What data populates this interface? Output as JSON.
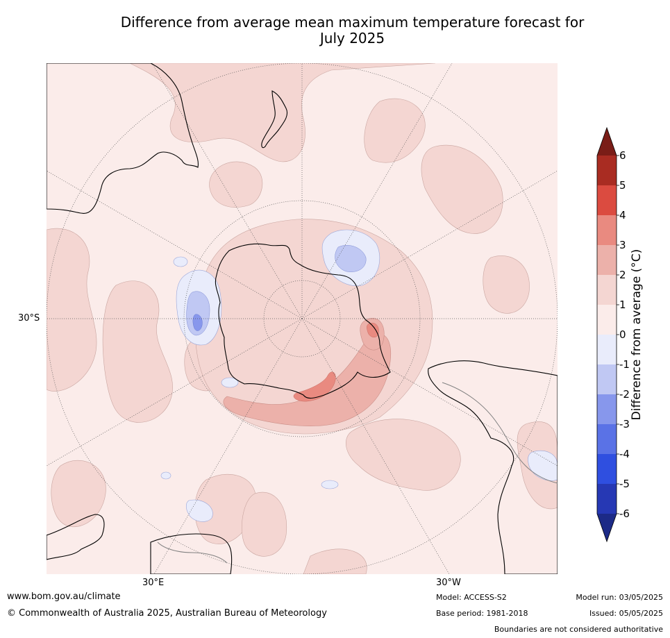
{
  "title": {
    "line1": "Difference from average mean maximum temperature forecast for",
    "line2": "July 2025"
  },
  "map": {
    "lat_label": "30°S",
    "lon_label_east": "30°E",
    "lon_label_west": "30°W"
  },
  "colorbar": {
    "label": "Difference from average (°C)",
    "ticks": [
      "6",
      "5",
      "4",
      "3",
      "2",
      "1",
      "0",
      "-1",
      "-2",
      "-3",
      "-4",
      "-5",
      "-6"
    ],
    "colors": {
      "over": "#7a1d17",
      "c5_6": "#a92c22",
      "c4_5": "#db4b40",
      "c3_4": "#e98a80",
      "c2_3": "#ecb1aa",
      "c1_2": "#f4d6d2",
      "c0_1": "#fbecea",
      "cm1_0": "#e9ecfb",
      "cm2_m1": "#c0c8f3",
      "cm3_m2": "#8797ec",
      "cm4_m3": "#5a72e6",
      "cm5_m4": "#2f4fe0",
      "cm6_m5": "#2638b4",
      "under": "#1c2a87"
    }
  },
  "footer": {
    "website": "www.bom.gov.au/climate",
    "copyright": "© Commonwealth of Australia 2025, Australian Bureau of Meteorology",
    "model": "Model: ACCESS-S2",
    "base_period": "Base period: 1981-2018",
    "model_run": "Model run: 03/05/2025",
    "issued": "Issued: 05/05/2025",
    "disclaimer": "Boundaries are not considered authoritative"
  }
}
